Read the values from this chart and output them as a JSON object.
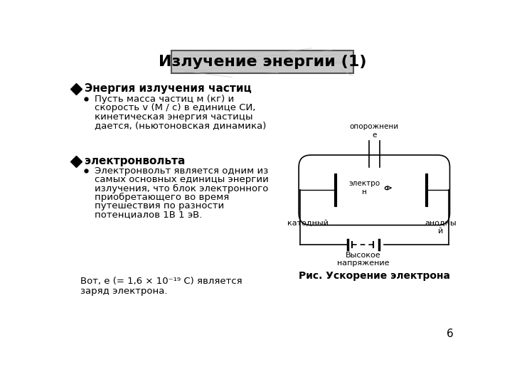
{
  "title": "Излучение энергии (1)",
  "title_bg": "#c8c8c8",
  "bg_color": "#ffffff",
  "bullet1_header": "Энергия излучения частиц",
  "bullet1_text_line1": "Пусть масса частиц м (кг) и",
  "bullet1_text_line2": "скорость v (М / с) в единице СИ,",
  "bullet1_text_line3": "кинетическая энергия частицы",
  "bullet1_text_line4": "дается, (ньютоновская динамика)",
  "bullet2_header": "электронвольта",
  "bullet2_text_line1": "Электронвольт является одним из",
  "bullet2_text_line2": "самых основных единицы энергии",
  "bullet2_text_line3": "излучения, что блок электронного",
  "bullet2_text_line4": "приобретающего во время",
  "bullet2_text_line5": "путешествия по разности",
  "bullet2_text_line6": "потенциалов 1В 1 эВ.",
  "footer_line1": "Вот, е (= 1,6 × 10⁻¹⁹ С) является",
  "footer_line2": "заряд электрона.",
  "diagram_label_top": "опорожнени\nе",
  "diagram_label_electron": "электро\nн",
  "diagram_label_cathode": "катодный",
  "diagram_label_anode": "анодны\nй",
  "diagram_label_voltage": "Высокое\nнапряжение",
  "diagram_caption": "Рис. Ускорение электрона",
  "page_number": "6",
  "text_color": "#000000",
  "diamond_color": "#000000"
}
